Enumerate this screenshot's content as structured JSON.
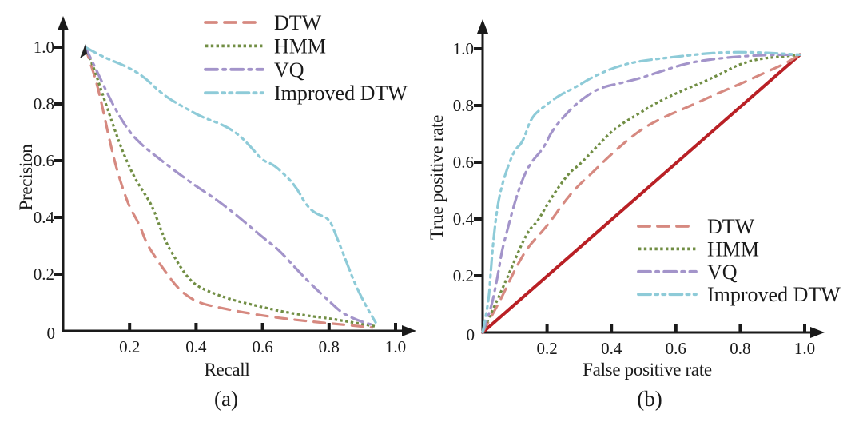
{
  "figure": {
    "description": "Two-panel comparison figure of retrieval/detection methods",
    "panel_count": 2
  },
  "chart_data": [
    {
      "id": "precision-recall",
      "type": "line",
      "caption": "(a)",
      "xlabel": "Recall",
      "ylabel": "Precision",
      "xlim": [
        0,
        1.08
      ],
      "ylim": [
        0,
        1.08
      ],
      "xticks": [
        0.2,
        0.4,
        0.6,
        0.8,
        1.0
      ],
      "yticks": [
        0.2,
        0.4,
        0.6,
        0.8,
        1.0
      ],
      "origin_label": "0",
      "grid": false,
      "legend_position": "upper-right-inside",
      "series": [
        {
          "name": "DTW",
          "color": "#D68980",
          "style": "dashed",
          "width": 3.2,
          "in_legend": true,
          "points": [
            [
              0.067,
              1.0
            ],
            [
              0.08,
              0.95
            ],
            [
              0.1,
              0.88
            ],
            [
              0.12,
              0.78
            ],
            [
              0.14,
              0.67
            ],
            [
              0.16,
              0.575
            ],
            [
              0.18,
              0.5
            ],
            [
              0.2,
              0.435
            ],
            [
              0.23,
              0.375
            ],
            [
              0.25,
              0.31
            ],
            [
              0.28,
              0.255
            ],
            [
              0.31,
              0.205
            ],
            [
              0.34,
              0.158
            ],
            [
              0.37,
              0.125
            ],
            [
              0.41,
              0.098
            ],
            [
              0.47,
              0.082
            ],
            [
              0.53,
              0.068
            ],
            [
              0.61,
              0.052
            ],
            [
              0.69,
              0.04
            ],
            [
              0.77,
              0.03
            ],
            [
              0.85,
              0.021
            ],
            [
              0.93,
              0.012
            ]
          ]
        },
        {
          "name": "HMM",
          "color": "#718E44",
          "style": "dotted",
          "width": 3.2,
          "in_legend": true,
          "points": [
            [
              0.067,
              1.0
            ],
            [
              0.09,
              0.935
            ],
            [
              0.11,
              0.865
            ],
            [
              0.13,
              0.795
            ],
            [
              0.155,
              0.71
            ],
            [
              0.175,
              0.645
            ],
            [
              0.2,
              0.575
            ],
            [
              0.225,
              0.52
            ],
            [
              0.25,
              0.475
            ],
            [
              0.27,
              0.435
            ],
            [
              0.29,
              0.37
            ],
            [
              0.31,
              0.31
            ],
            [
              0.34,
              0.25
            ],
            [
              0.37,
              0.195
            ],
            [
              0.4,
              0.16
            ],
            [
              0.44,
              0.138
            ],
            [
              0.5,
              0.112
            ],
            [
              0.57,
              0.092
            ],
            [
              0.65,
              0.07
            ],
            [
              0.73,
              0.054
            ],
            [
              0.8,
              0.044
            ],
            [
              0.87,
              0.03
            ],
            [
              0.94,
              0.016
            ]
          ]
        },
        {
          "name": "VQ",
          "color": "#A394CA",
          "style": "dash-dot",
          "width": 3.2,
          "in_legend": true,
          "points": [
            [
              0.067,
              1.0
            ],
            [
              0.1,
              0.92
            ],
            [
              0.13,
              0.845
            ],
            [
              0.16,
              0.775
            ],
            [
              0.2,
              0.7
            ],
            [
              0.24,
              0.652
            ],
            [
              0.28,
              0.615
            ],
            [
              0.335,
              0.565
            ],
            [
              0.4,
              0.51
            ],
            [
              0.465,
              0.46
            ],
            [
              0.53,
              0.4
            ],
            [
              0.6,
              0.33
            ],
            [
              0.65,
              0.285
            ],
            [
              0.7,
              0.22
            ],
            [
              0.75,
              0.16
            ],
            [
              0.8,
              0.105
            ],
            [
              0.84,
              0.062
            ],
            [
              0.89,
              0.035
            ],
            [
              0.94,
              0.018
            ]
          ]
        },
        {
          "name": "Improved DTW",
          "color": "#8ECBD8",
          "style": "dash-dot-dot",
          "width": 3.2,
          "in_legend": true,
          "points": [
            [
              0.067,
              1.0
            ],
            [
              0.12,
              0.965
            ],
            [
              0.18,
              0.938
            ],
            [
              0.24,
              0.9
            ],
            [
              0.3,
              0.832
            ],
            [
              0.36,
              0.79
            ],
            [
              0.42,
              0.752
            ],
            [
              0.47,
              0.732
            ],
            [
              0.52,
              0.7
            ],
            [
              0.56,
              0.655
            ],
            [
              0.6,
              0.6
            ],
            [
              0.63,
              0.588
            ],
            [
              0.66,
              0.558
            ],
            [
              0.7,
              0.51
            ],
            [
              0.73,
              0.445
            ],
            [
              0.76,
              0.412
            ],
            [
              0.8,
              0.398
            ],
            [
              0.82,
              0.34
            ],
            [
              0.85,
              0.25
            ],
            [
              0.88,
              0.16
            ],
            [
              0.91,
              0.09
            ],
            [
              0.94,
              0.03
            ]
          ]
        }
      ]
    },
    {
      "id": "roc",
      "type": "line",
      "caption": "(b)",
      "xlabel": "False positive rate",
      "ylabel": "True positive rate",
      "xlim": [
        0,
        1.08
      ],
      "ylim": [
        0,
        1.08
      ],
      "xticks": [
        0.2,
        0.4,
        0.6,
        0.8,
        1.0
      ],
      "yticks": [
        0.2,
        0.4,
        0.6,
        0.8,
        1.0
      ],
      "origin_label": "0",
      "grid": false,
      "legend_position": "lower-right-inside",
      "series": [
        {
          "name": "chance-diagonal",
          "color": "#B92025",
          "style": "solid",
          "width": 4,
          "in_legend": false,
          "points": [
            [
              0,
              0
            ],
            [
              0.985,
              0.979
            ]
          ]
        },
        {
          "name": "DTW",
          "color": "#D68980",
          "style": "dashed",
          "width": 3.2,
          "in_legend": true,
          "points": [
            [
              0,
              0
            ],
            [
              0.035,
              0.073
            ],
            [
              0.06,
              0.125
            ],
            [
              0.085,
              0.186
            ],
            [
              0.11,
              0.242
            ],
            [
              0.14,
              0.3
            ],
            [
              0.18,
              0.35
            ],
            [
              0.21,
              0.39
            ],
            [
              0.25,
              0.455
            ],
            [
              0.29,
              0.51
            ],
            [
              0.33,
              0.552
            ],
            [
              0.41,
              0.64
            ],
            [
              0.49,
              0.715
            ],
            [
              0.56,
              0.758
            ],
            [
              0.64,
              0.796
            ],
            [
              0.73,
              0.843
            ],
            [
              0.81,
              0.881
            ],
            [
              0.88,
              0.918
            ],
            [
              0.935,
              0.945
            ],
            [
              0.985,
              0.979
            ]
          ]
        },
        {
          "name": "HMM",
          "color": "#718E44",
          "style": "dotted",
          "width": 3.2,
          "in_legend": true,
          "points": [
            [
              0,
              0
            ],
            [
              0.02,
              0.054
            ],
            [
              0.04,
              0.1
            ],
            [
              0.07,
              0.177
            ],
            [
              0.095,
              0.242
            ],
            [
              0.12,
              0.308
            ],
            [
              0.145,
              0.364
            ],
            [
              0.17,
              0.39
            ],
            [
              0.2,
              0.45
            ],
            [
              0.24,
              0.52
            ],
            [
              0.275,
              0.57
            ],
            [
              0.3,
              0.59
            ],
            [
              0.35,
              0.65
            ],
            [
              0.41,
              0.72
            ],
            [
              0.48,
              0.768
            ],
            [
              0.54,
              0.81
            ],
            [
              0.61,
              0.848
            ],
            [
              0.69,
              0.885
            ],
            [
              0.75,
              0.918
            ],
            [
              0.8,
              0.947
            ],
            [
              0.86,
              0.965
            ],
            [
              0.92,
              0.972
            ],
            [
              0.985,
              0.979
            ]
          ]
        },
        {
          "name": "VQ",
          "color": "#A394CA",
          "style": "dash-dot",
          "width": 3.2,
          "in_legend": true,
          "points": [
            [
              0,
              0
            ],
            [
              0.025,
              0.08
            ],
            [
              0.04,
              0.16
            ],
            [
              0.05,
              0.22
            ],
            [
              0.06,
              0.29
            ],
            [
              0.08,
              0.375
            ],
            [
              0.1,
              0.46
            ],
            [
              0.125,
              0.545
            ],
            [
              0.15,
              0.6
            ],
            [
              0.19,
              0.65
            ],
            [
              0.215,
              0.712
            ],
            [
              0.265,
              0.777
            ],
            [
              0.3,
              0.815
            ],
            [
              0.36,
              0.862
            ],
            [
              0.44,
              0.882
            ],
            [
              0.5,
              0.9
            ],
            [
              0.56,
              0.923
            ],
            [
              0.64,
              0.951
            ],
            [
              0.73,
              0.966
            ],
            [
              0.82,
              0.975
            ],
            [
              0.9,
              0.979
            ],
            [
              0.985,
              0.979
            ]
          ]
        },
        {
          "name": "Improved DTW",
          "color": "#8ECBD8",
          "style": "dash-dot-dot",
          "width": 3.2,
          "in_legend": true,
          "points": [
            [
              0,
              0
            ],
            [
              0.018,
              0.1
            ],
            [
              0.025,
              0.21
            ],
            [
              0.032,
              0.31
            ],
            [
              0.045,
              0.44
            ],
            [
              0.06,
              0.52
            ],
            [
              0.08,
              0.59
            ],
            [
              0.1,
              0.645
            ],
            [
              0.125,
              0.67
            ],
            [
              0.15,
              0.758
            ],
            [
              0.19,
              0.796
            ],
            [
              0.24,
              0.838
            ],
            [
              0.285,
              0.862
            ],
            [
              0.34,
              0.9
            ],
            [
              0.41,
              0.935
            ],
            [
              0.48,
              0.956
            ],
            [
              0.6,
              0.972
            ],
            [
              0.73,
              0.988
            ],
            [
              0.86,
              0.988
            ],
            [
              0.985,
              0.979
            ]
          ]
        }
      ]
    }
  ]
}
